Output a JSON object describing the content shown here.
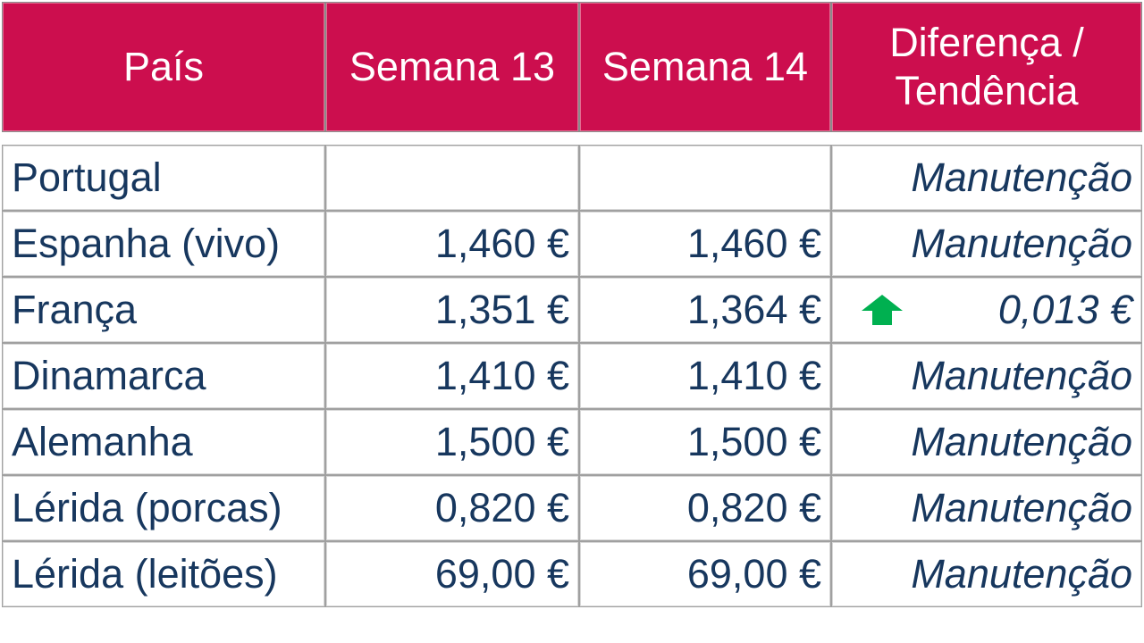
{
  "headers": [
    "País",
    "Semana 13",
    "Semana 14",
    "Diferença / Tendência"
  ],
  "header_lines": {
    "trend_line1": "Diferença /",
    "trend_line2": "Tendência"
  },
  "colors": {
    "header_bg": "#cc0e4e",
    "text": "#17375e",
    "up_arrow": "#00b050"
  },
  "rows": [
    {
      "country": "Portugal",
      "w13": "",
      "w14": "",
      "trend": "Manutenção",
      "icon": ""
    },
    {
      "country": "Espanha (vivo)",
      "w13": "1,460 €",
      "w14": "1,460 €",
      "trend": "Manutenção",
      "icon": ""
    },
    {
      "country": "França",
      "w13": "1,351 €",
      "w14": "1,364 €",
      "trend": "0,013 €",
      "icon": "up-arrow-icon"
    },
    {
      "country": "Dinamarca",
      "w13": "1,410 €",
      "w14": "1,410 €",
      "trend": "Manutenção",
      "icon": ""
    },
    {
      "country": "Alemanha",
      "w13": "1,500 €",
      "w14": "1,500 €",
      "trend": "Manutenção",
      "icon": ""
    },
    {
      "country": "Lérida (porcas)",
      "w13": "0,820 €",
      "w14": "0,820 €",
      "trend": "Manutenção",
      "icon": ""
    },
    {
      "country": "Lérida (leitões)",
      "w13": "69,00 €",
      "w14": "69,00 €",
      "trend": "Manutenção",
      "icon": ""
    }
  ]
}
